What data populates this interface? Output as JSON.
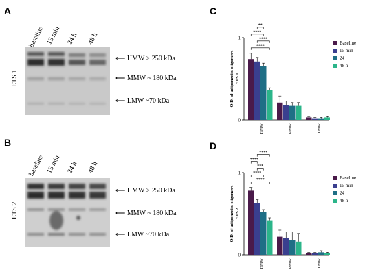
{
  "panels": {
    "A": {
      "letter": "A",
      "side_label": "ETS 1",
      "lanes": [
        "baseline",
        "15 min",
        "24 h",
        "48 h"
      ],
      "bands": [
        "HMW ≥ 250 kDa",
        "MMW ~ 180 kDa",
        "LMW ~70 kDa"
      ]
    },
    "B": {
      "letter": "B",
      "side_label": "ETS 2",
      "lanes": [
        "baseline",
        "15 min",
        "24 h",
        "48 h"
      ],
      "bands": [
        "HMW ≥ 250 kDa",
        "MMW ~ 180 kDa",
        "LMW ~70 kDa"
      ]
    },
    "C": {
      "letter": "C"
    },
    "D": {
      "letter": "D"
    }
  },
  "colors": {
    "baseline": "#4a1a4a",
    "15min": "#3a3f8f",
    "24h": "#1f6f86",
    "48h": "#2bb58a"
  },
  "chart_data": [
    {
      "type": "bar",
      "panel": "C",
      "ylabel": "O.D. of adiponectin oligomers ETS 1",
      "ylim": [
        0,
        1
      ],
      "yticks": [
        "0",
        "1"
      ],
      "categories": [
        "HMW",
        "MMW",
        "LMW"
      ],
      "series": [
        {
          "name": "Baseline",
          "values": [
            0.74,
            0.21,
            0.03
          ],
          "errors": [
            0.07,
            0.08,
            0.01
          ]
        },
        {
          "name": "15 min",
          "values": [
            0.71,
            0.18,
            0.02
          ],
          "errors": [
            0.05,
            0.05,
            0.01
          ]
        },
        {
          "name": "24",
          "values": [
            0.65,
            0.17,
            0.02
          ],
          "errors": [
            0.04,
            0.04,
            0.01
          ]
        },
        {
          "name": "48 h",
          "values": [
            0.36,
            0.17,
            0.03
          ],
          "errors": [
            0.03,
            0.04,
            0.01
          ]
        }
      ],
      "significance": [
        {
          "from": 0,
          "to": 3,
          "label": "****"
        },
        {
          "from": 1,
          "to": 3,
          "label": "****"
        },
        {
          "from": 0,
          "to": 2,
          "label": "****"
        },
        {
          "from": 1,
          "to": 2,
          "label": "**"
        }
      ]
    },
    {
      "type": "bar",
      "panel": "D",
      "ylabel": "O.D. of adiponectin oligomers ETS 2",
      "ylim": [
        0,
        1
      ],
      "yticks": [
        "0",
        "1"
      ],
      "categories": [
        "HMW",
        "MMW",
        "LMW"
      ],
      "series": [
        {
          "name": "Baseline",
          "values": [
            0.78,
            0.22,
            0.02
          ],
          "errors": [
            0.04,
            0.08,
            0.01
          ]
        },
        {
          "name": "15 min",
          "values": [
            0.63,
            0.2,
            0.02
          ],
          "errors": [
            0.04,
            0.08,
            0.01
          ]
        },
        {
          "name": "24",
          "values": [
            0.52,
            0.18,
            0.03
          ],
          "errors": [
            0.03,
            0.1,
            0.02
          ]
        },
        {
          "name": "48 h",
          "values": [
            0.42,
            0.16,
            0.02
          ],
          "errors": [
            0.03,
            0.1,
            0.01
          ]
        }
      ],
      "significance": [
        {
          "from": 0,
          "to": 3,
          "label": "****"
        },
        {
          "from": 0,
          "to": 2,
          "label": "****"
        },
        {
          "from": 1,
          "to": 2,
          "label": "***"
        },
        {
          "from": 0,
          "to": 1,
          "label": "****"
        },
        {
          "from": 1,
          "to": 3,
          "label": "****"
        }
      ]
    }
  ]
}
